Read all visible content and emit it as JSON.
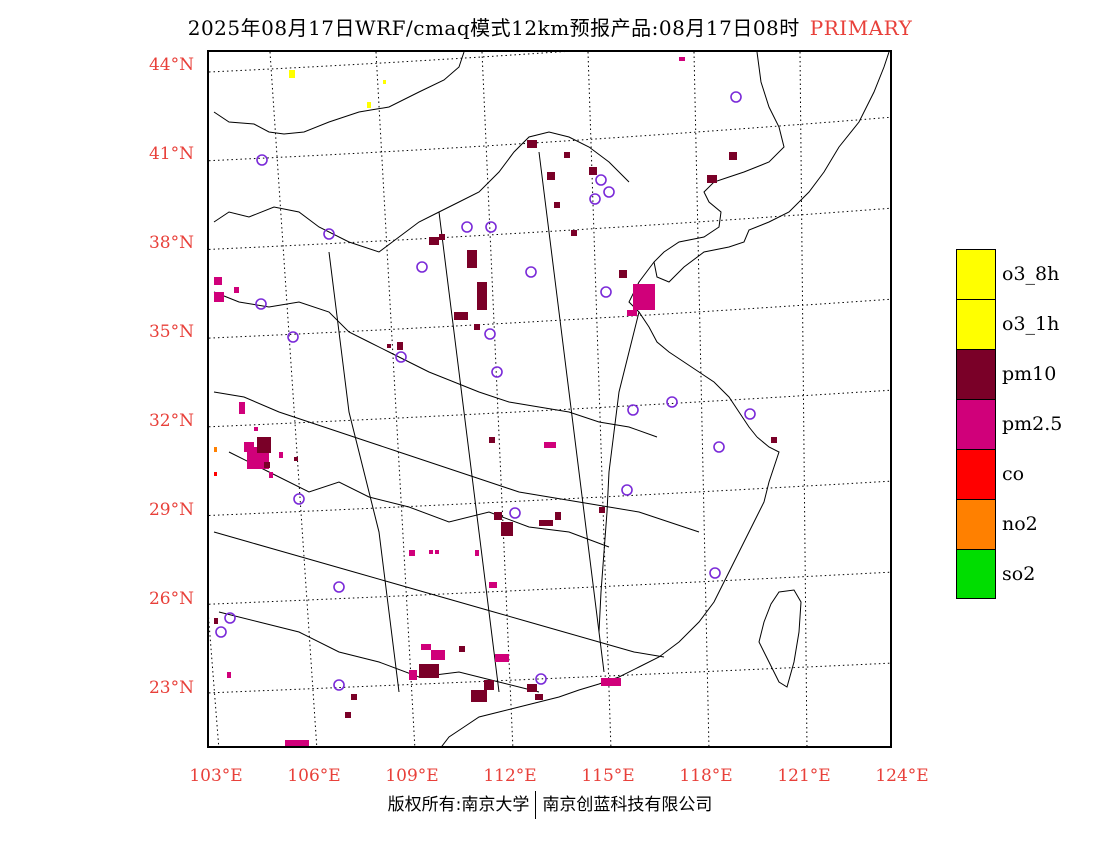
{
  "title": {
    "main": "2025年08月17日WRF/cmaq模式12km预报产品:08月17日08时",
    "tag": "PRIMARY"
  },
  "colors": {
    "tag": "#e8403a",
    "axis_labels": "#e8403a",
    "o3_8h": "#ffff00",
    "o3_1h": "#ffff00",
    "pm10": "#7a0028",
    "pm2.5": "#d0007a",
    "co": "#ff0000",
    "no2": "#ff8000",
    "so2": "#00dd00",
    "station_circle": "#7a2ad8"
  },
  "lat_labels": [
    "44°N",
    "41°N",
    "38°N",
    "35°N",
    "32°N",
    "29°N",
    "26°N",
    "23°N"
  ],
  "lon_labels": [
    "103°E",
    "106°E",
    "109°E",
    "112°E",
    "115°E",
    "118°E",
    "121°E",
    "124°E"
  ],
  "legend": [
    {
      "label": "o3_8h",
      "color": "#ffff00"
    },
    {
      "label": "o3_1h",
      "color": "#ffff00"
    },
    {
      "label": "pm10",
      "color": "#7a0028"
    },
    {
      "label": "pm2.5",
      "color": "#d0007a"
    },
    {
      "label": "co",
      "color": "#ff0000"
    },
    {
      "label": "no2",
      "color": "#ff8000"
    },
    {
      "label": "so2",
      "color": "#00dd00"
    }
  ],
  "footer": {
    "left": "版权所有:南京大学",
    "right": "南京创蓝科技有限公司"
  }
}
